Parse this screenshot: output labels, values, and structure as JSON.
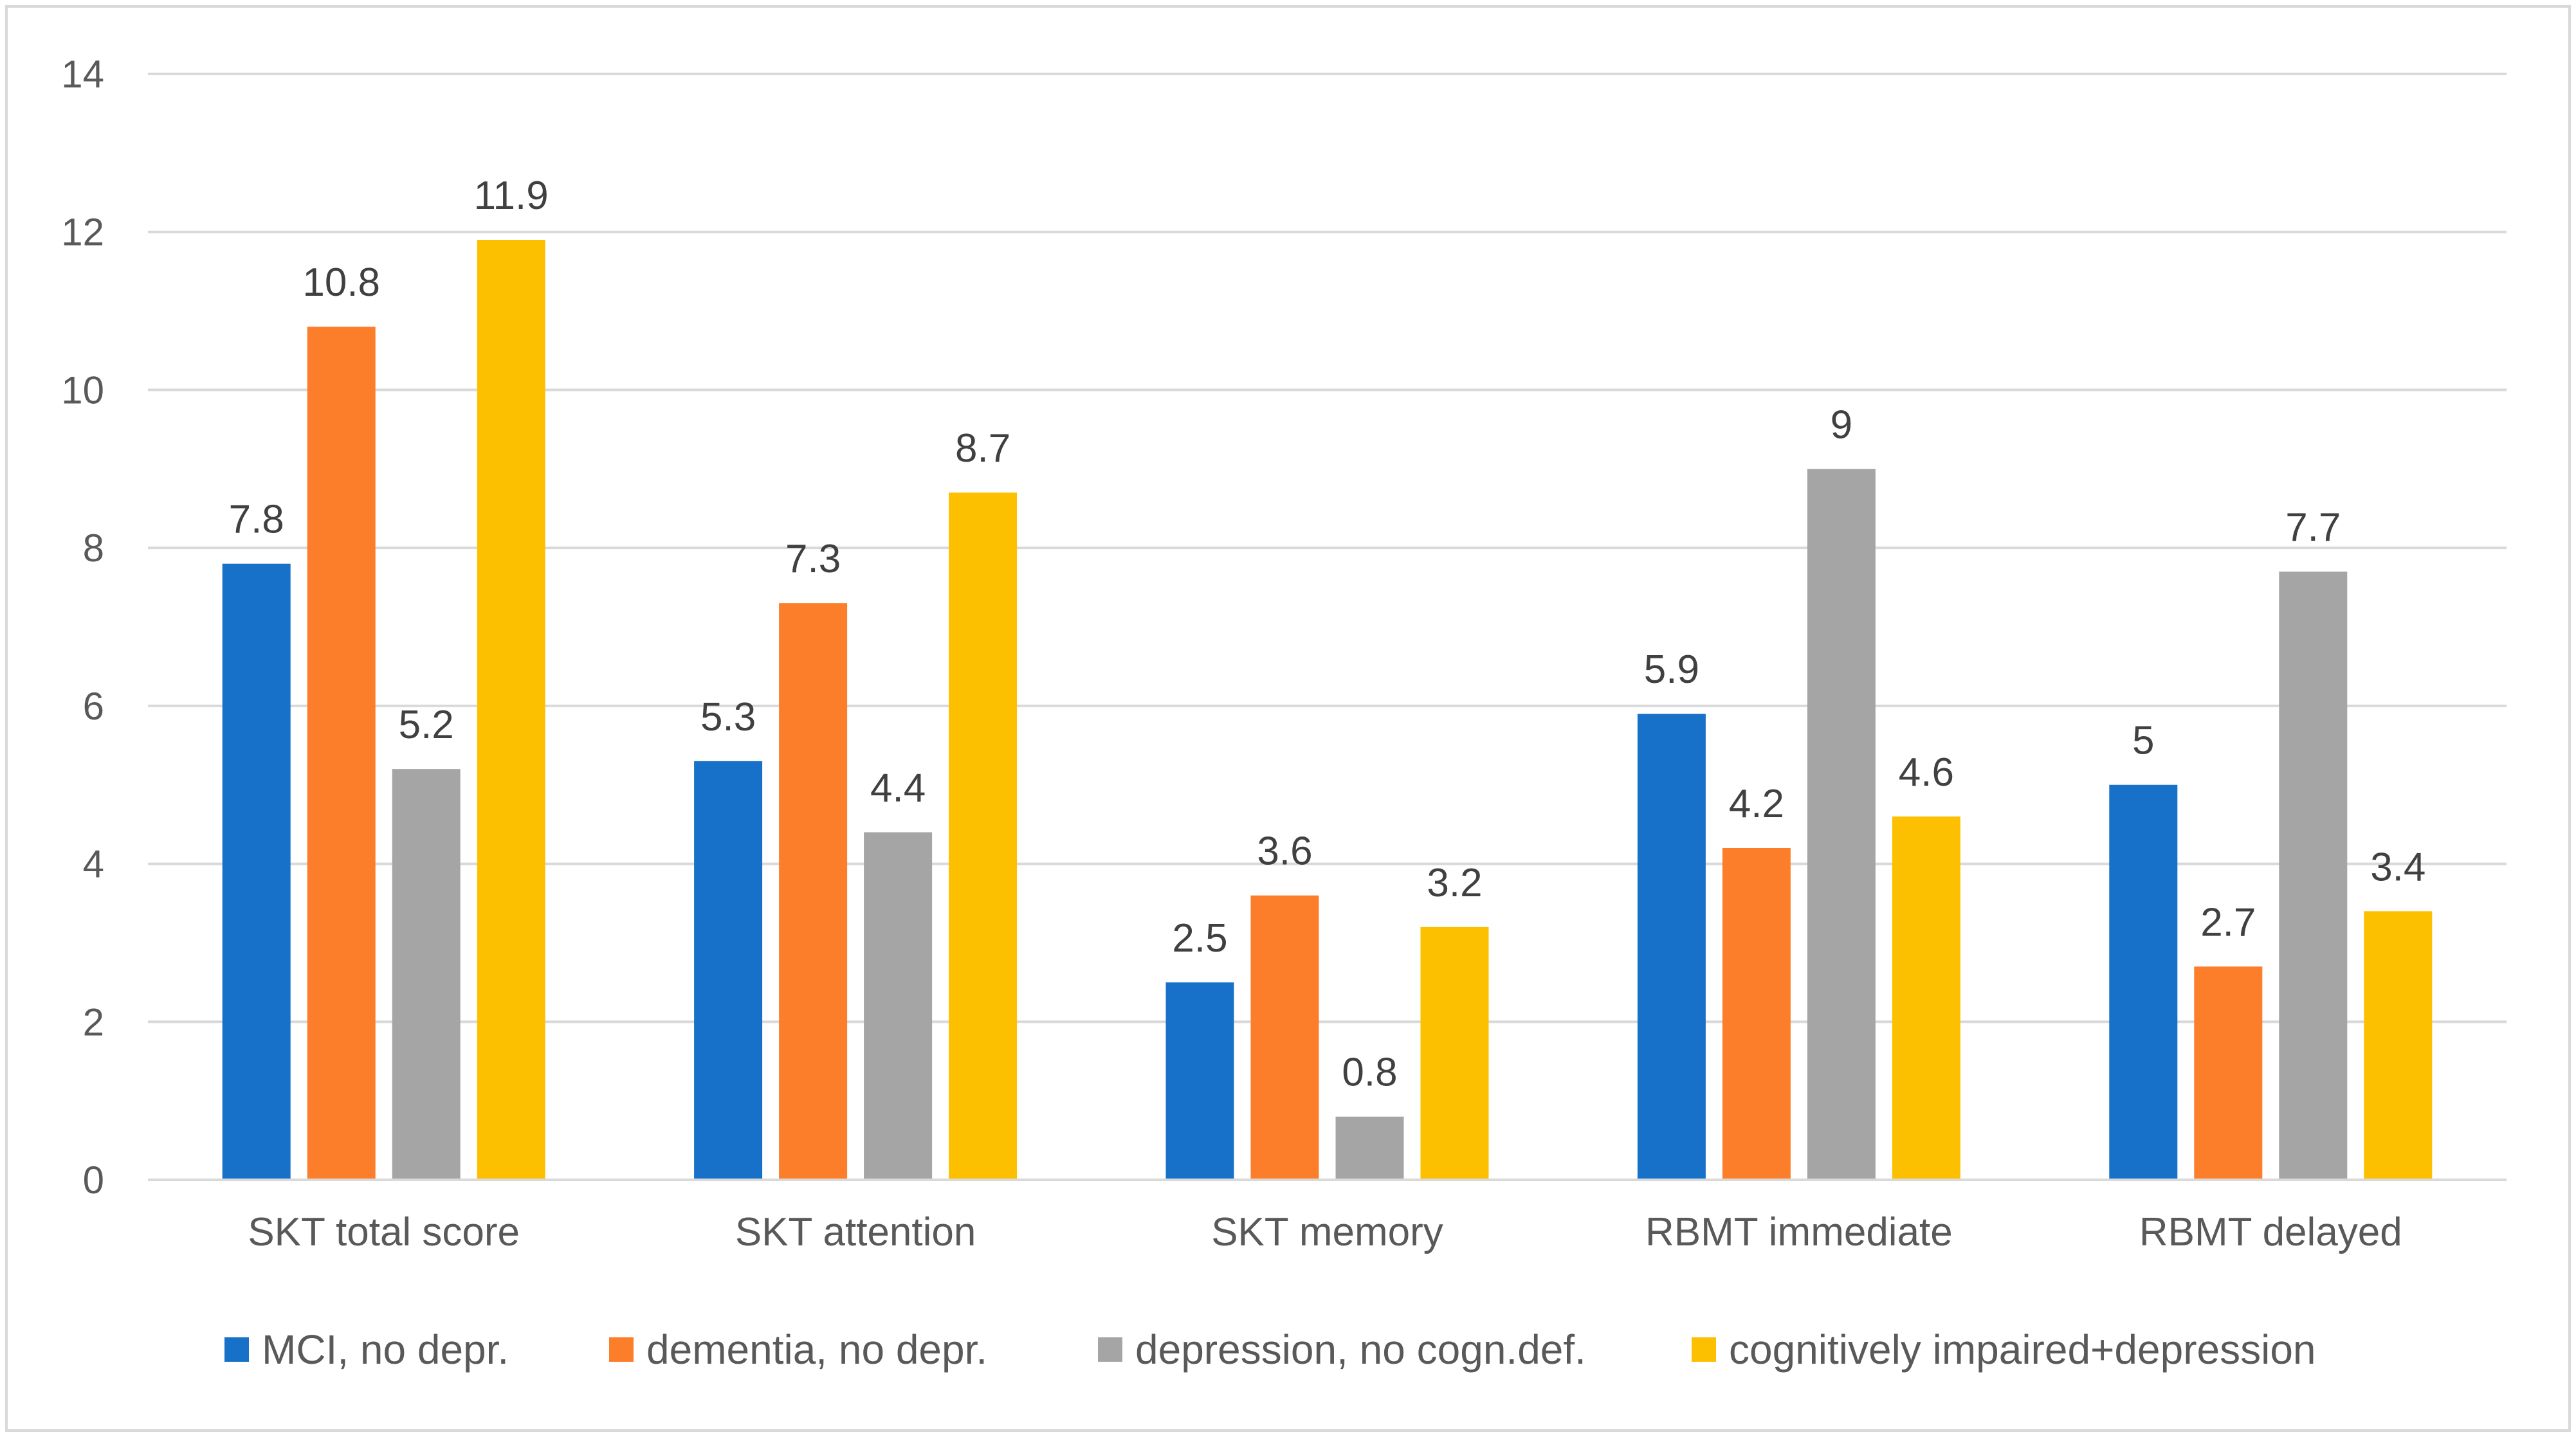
{
  "chart_data": {
    "type": "bar",
    "title": "",
    "xlabel": "",
    "ylabel": "",
    "ylim": [
      0,
      14
    ],
    "yticks": [
      0,
      2,
      4,
      6,
      8,
      10,
      12,
      14
    ],
    "grid": true,
    "legend_position": "bottom",
    "categories": [
      "SKT total score",
      "SKT attention",
      "SKT memory",
      "RBMT immediate",
      "RBMT delayed"
    ],
    "series": [
      {
        "name": "MCI, no depr.",
        "color": "#1771c9",
        "values": [
          7.8,
          5.3,
          2.5,
          5.9,
          5
        ],
        "labels": [
          "7.8",
          "5.3",
          "2.5",
          "5.9",
          "5"
        ]
      },
      {
        "name": "dementia, no depr.",
        "color": "#fd7e2a",
        "values": [
          10.8,
          7.3,
          3.6,
          4.2,
          2.7
        ],
        "labels": [
          "10.8",
          "7.3",
          "3.6",
          "4.2",
          "2.7"
        ]
      },
      {
        "name": "depression, no cogn.def.",
        "color": "#a5a5a5",
        "values": [
          5.2,
          4.4,
          0.8,
          9,
          7.7
        ],
        "labels": [
          "5.2",
          "4.4",
          "0.8",
          "9",
          "7.7"
        ]
      },
      {
        "name": "cognitively impaired+depression",
        "color": "#fdc000",
        "values": [
          11.9,
          8.7,
          3.2,
          4.6,
          3.4
        ],
        "labels": [
          "11.9",
          "8.7",
          "3.2",
          "4.6",
          "3.4"
        ]
      }
    ]
  }
}
